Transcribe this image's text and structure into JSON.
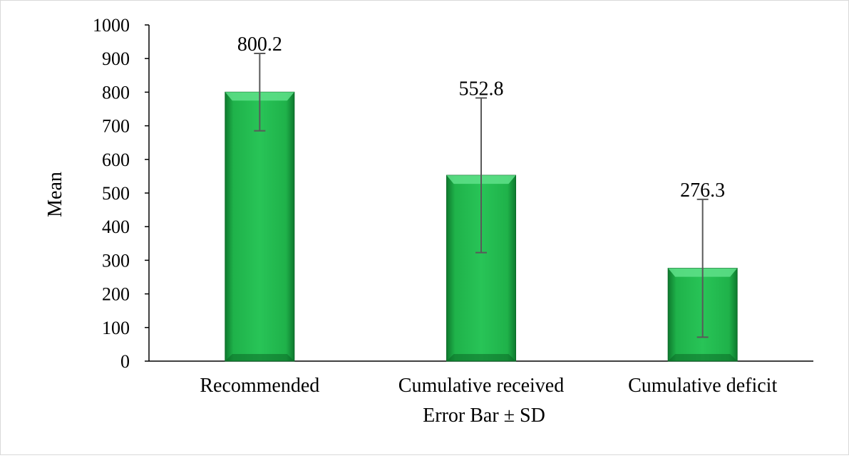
{
  "chart_data": {
    "type": "bar",
    "categories": [
      "Recommended",
      "Cumulative received",
      "Cumulative deficit"
    ],
    "values": [
      800.2,
      552.8,
      276.3
    ],
    "data_labels": [
      "800.2",
      "552.8",
      "276.3"
    ],
    "error_sd": [
      115,
      230,
      205
    ],
    "xlabel": "Error Bar ± SD",
    "ylabel": "Mean",
    "ylim": [
      0,
      1000
    ],
    "yticks": [
      0,
      100,
      200,
      300,
      400,
      500,
      600,
      700,
      800,
      900,
      1000
    ],
    "grid": false,
    "legend": "none",
    "colors": {
      "bar": "#1fb24a",
      "bar_light": "#5fe08a",
      "bar_dark": "#0b6a27",
      "error_bar": "#595959",
      "axis": "#000000"
    }
  }
}
